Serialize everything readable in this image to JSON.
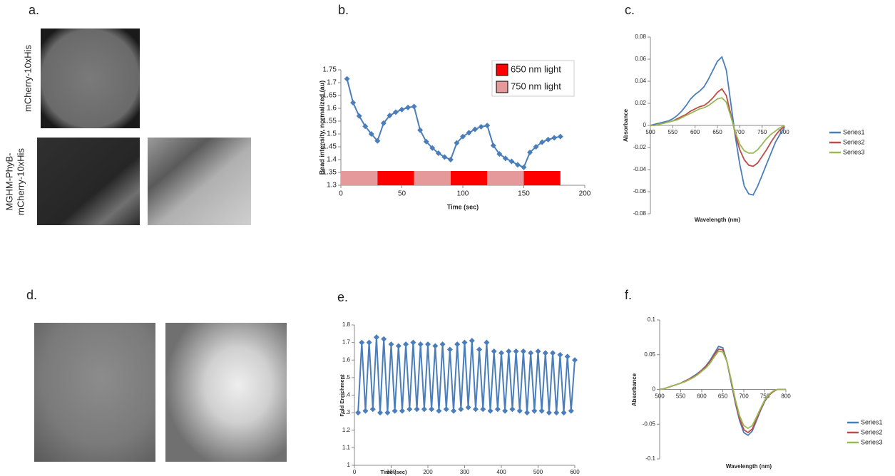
{
  "panel_labels": [
    "a.",
    "d."
  ],
  "image_labels": {
    "top": "mCherry-10xHis",
    "bottom": [
      "MGHM-PhyB-",
      "mCherry-10xHis"
    ]
  },
  "chart_data": [
    {
      "type": "line",
      "title": "b.",
      "xlabel": "Time (sec)",
      "ylabel": "Bead intensity, normalized (au)",
      "marker": "diamond",
      "x": [
        5,
        10,
        15,
        20,
        25,
        30,
        35,
        40,
        45,
        50,
        55,
        60,
        65,
        70,
        75,
        80,
        85,
        90,
        95,
        100,
        105,
        110,
        115,
        120,
        125,
        130,
        135,
        140,
        145,
        150,
        155,
        160,
        165,
        170,
        175,
        180
      ],
      "series": [
        {
          "color": "#4a7ebb",
          "values": [
            1.715,
            1.622,
            1.57,
            1.53,
            1.5,
            1.473,
            1.542,
            1.572,
            1.585,
            1.595,
            1.603,
            1.607,
            1.515,
            1.47,
            1.445,
            1.425,
            1.41,
            1.4,
            1.465,
            1.49,
            1.505,
            1.518,
            1.528,
            1.533,
            1.455,
            1.422,
            1.405,
            1.393,
            1.38,
            1.37,
            1.428,
            1.45,
            1.468,
            1.478,
            1.485,
            1.49
          ]
        }
      ],
      "bands": [
        {
          "x": [
            0,
            30
          ],
          "color": "#e6999a"
        },
        {
          "x": [
            30,
            60
          ],
          "color": "#ff0000"
        },
        {
          "x": [
            60,
            90
          ],
          "color": "#e6999a"
        },
        {
          "x": [
            90,
            120
          ],
          "color": "#ff0000"
        },
        {
          "x": [
            120,
            150
          ],
          "color": "#e6999a"
        },
        {
          "x": [
            150,
            180
          ],
          "color": "#ff0000"
        }
      ],
      "legend_items": [
        {
          "name": "650 nm light",
          "color": "#ff0000"
        },
        {
          "name": "750 nm light",
          "color": "#e6999a"
        }
      ],
      "xlim": [
        0,
        200
      ],
      "xticks": [
        0,
        50,
        100,
        150,
        200
      ],
      "ylim": [
        1.3,
        1.75
      ],
      "yticks": [
        1.3,
        1.35,
        1.4,
        1.45,
        1.5,
        1.55,
        1.6,
        1.65,
        1.7,
        1.75
      ]
    },
    {
      "type": "line",
      "title": "c.",
      "xlabel": "Wavelength (nm)",
      "ylabel": "Absorbance",
      "x_axis_at_zero": true,
      "legend": "right",
      "x": [
        500,
        510,
        520,
        530,
        540,
        550,
        560,
        570,
        580,
        590,
        600,
        610,
        620,
        630,
        640,
        650,
        660,
        670,
        680,
        690,
        700,
        710,
        720,
        730,
        740,
        750,
        760,
        770,
        780,
        790,
        800
      ],
      "series": [
        {
          "name": "Series1",
          "color": "#4a7ebb",
          "values": [
            0,
            0.001,
            0.002,
            0.003,
            0.004,
            0.006,
            0.009,
            0.013,
            0.018,
            0.024,
            0.028,
            0.031,
            0.035,
            0.042,
            0.05,
            0.058,
            0.062,
            0.05,
            0.02,
            -0.01,
            -0.035,
            -0.055,
            -0.062,
            -0.063,
            -0.055,
            -0.045,
            -0.035,
            -0.025,
            -0.015,
            -0.008,
            -0.002
          ]
        },
        {
          "name": "Series2",
          "color": "#be4b48",
          "values": [
            0,
            0,
            0.001,
            0.002,
            0.003,
            0.004,
            0.006,
            0.008,
            0.01,
            0.013,
            0.015,
            0.017,
            0.018,
            0.021,
            0.025,
            0.03,
            0.033,
            0.027,
            0.01,
            -0.008,
            -0.022,
            -0.031,
            -0.036,
            -0.037,
            -0.034,
            -0.028,
            -0.022,
            -0.015,
            -0.009,
            -0.004,
            -0.001
          ]
        },
        {
          "name": "Series3",
          "color": "#98b954",
          "values": [
            0,
            0,
            0.001,
            0.002,
            0.003,
            0.004,
            0.005,
            0.007,
            0.009,
            0.011,
            0.013,
            0.015,
            0.016,
            0.018,
            0.021,
            0.024,
            0.025,
            0.021,
            0.008,
            -0.006,
            -0.017,
            -0.023,
            -0.025,
            -0.025,
            -0.022,
            -0.017,
            -0.012,
            -0.008,
            -0.005,
            -0.002,
            0
          ]
        }
      ],
      "xlim": [
        500,
        800
      ],
      "xticks": [
        500,
        550,
        600,
        650,
        700,
        750,
        800
      ],
      "ylim": [
        -0.08,
        0.08
      ],
      "yticks": [
        -0.08,
        -0.06,
        -0.04,
        -0.02,
        0,
        0.02,
        0.04,
        0.06,
        0.08
      ]
    },
    {
      "type": "line",
      "title": "e.",
      "xlabel": "Time (sec)",
      "ylabel": "Fold Enrichment",
      "marker": "diamond",
      "x": [
        10,
        20,
        30,
        40,
        50,
        60,
        70,
        80,
        90,
        100,
        110,
        120,
        130,
        140,
        150,
        160,
        170,
        180,
        190,
        200,
        210,
        220,
        230,
        240,
        250,
        260,
        270,
        280,
        290,
        300,
        310,
        320,
        330,
        340,
        350,
        360,
        370,
        380,
        390,
        400,
        410,
        420,
        430,
        440,
        450,
        460,
        470,
        480,
        490,
        500,
        510,
        520,
        530,
        540,
        550,
        560,
        570,
        580,
        590,
        600
      ],
      "series": [
        {
          "color": "#4a7ebb",
          "values": [
            1.3,
            1.7,
            1.31,
            1.7,
            1.32,
            1.73,
            1.3,
            1.72,
            1.3,
            1.69,
            1.31,
            1.68,
            1.31,
            1.69,
            1.32,
            1.7,
            1.32,
            1.69,
            1.32,
            1.69,
            1.32,
            1.68,
            1.31,
            1.69,
            1.32,
            1.66,
            1.31,
            1.69,
            1.32,
            1.7,
            1.33,
            1.71,
            1.32,
            1.66,
            1.32,
            1.7,
            1.31,
            1.65,
            1.32,
            1.64,
            1.31,
            1.65,
            1.32,
            1.65,
            1.31,
            1.65,
            1.3,
            1.64,
            1.31,
            1.65,
            1.31,
            1.64,
            1.3,
            1.64,
            1.3,
            1.63,
            1.3,
            1.62,
            1.31,
            1.6
          ]
        }
      ],
      "xlim": [
        0,
        600
      ],
      "xticks": [
        0,
        100,
        200,
        300,
        400,
        500,
        600
      ],
      "ylim": [
        1,
        1.8
      ],
      "yticks": [
        1,
        1.1,
        1.2,
        1.3,
        1.4,
        1.5,
        1.6,
        1.7,
        1.8
      ]
    },
    {
      "type": "line",
      "title": "f.",
      "xlabel": "Wavelength (nm)",
      "ylabel": "Absorbance",
      "x_axis_at_zero": true,
      "legend": "right",
      "x": [
        500,
        510,
        520,
        530,
        540,
        550,
        560,
        570,
        580,
        590,
        600,
        610,
        620,
        630,
        640,
        650,
        660,
        670,
        680,
        690,
        700,
        710,
        720,
        730,
        740,
        750,
        760,
        770,
        780,
        790,
        800
      ],
      "series": [
        {
          "name": "Series1",
          "color": "#4a7ebb",
          "values": [
            0,
            0.001,
            0.003,
            0.005,
            0.007,
            0.009,
            0.012,
            0.015,
            0.019,
            0.023,
            0.028,
            0.034,
            0.042,
            0.052,
            0.062,
            0.06,
            0.04,
            0.01,
            -0.02,
            -0.045,
            -0.062,
            -0.066,
            -0.06,
            -0.045,
            -0.03,
            -0.017,
            -0.008,
            -0.003,
            0,
            0,
            0
          ]
        },
        {
          "name": "Series2",
          "color": "#be4b48",
          "values": [
            0,
            0.001,
            0.003,
            0.005,
            0.007,
            0.009,
            0.012,
            0.015,
            0.018,
            0.022,
            0.027,
            0.033,
            0.04,
            0.05,
            0.058,
            0.057,
            0.04,
            0.012,
            -0.018,
            -0.042,
            -0.058,
            -0.062,
            -0.057,
            -0.043,
            -0.029,
            -0.016,
            -0.008,
            -0.003,
            0,
            0,
            0
          ]
        },
        {
          "name": "Series3",
          "color": "#98b954",
          "values": [
            0,
            0.001,
            0.003,
            0.005,
            0.007,
            0.009,
            0.011,
            0.014,
            0.017,
            0.021,
            0.026,
            0.031,
            0.038,
            0.047,
            0.055,
            0.054,
            0.04,
            0.014,
            -0.015,
            -0.038,
            -0.052,
            -0.056,
            -0.052,
            -0.04,
            -0.027,
            -0.015,
            -0.007,
            -0.002,
            0,
            0,
            0
          ]
        }
      ],
      "xlim": [
        500,
        800
      ],
      "xticks": [
        500,
        550,
        600,
        650,
        700,
        750,
        800
      ],
      "ylim": [
        -0.1,
        0.1
      ],
      "yticks": [
        -0.1,
        -0.05,
        0,
        0.05,
        0.1
      ]
    }
  ]
}
